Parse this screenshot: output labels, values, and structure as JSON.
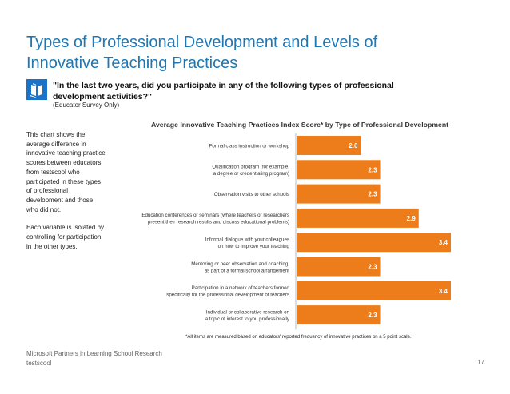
{
  "slide": {
    "title_line1": "Types of Professional Development and Levels of",
    "title_line2": "Innovative Teaching Practices",
    "question": "\"In the last two years, did you participate in any of the following types of professional development activities?\"",
    "question_source": "(Educator Survey Only)",
    "side_note_1": "This chart shows the average difference in innovative teaching practice scores between educators from testscool who participated in these types of professional development and those who did not.",
    "side_note_2": "Each variable is isolated by controlling for participation in the other types.",
    "footnote": "*All items are measured based on educators' reported frequency of innovative practices on a 5 point scale.",
    "footer_line1": "Microsoft Partners in Learning School Research",
    "footer_line2": "testscool",
    "page_number": "17",
    "icon": "book-icon"
  },
  "colors": {
    "title": "#1f78b4",
    "bar": "#ed7d1a",
    "icon": "#1a73c8"
  },
  "chart_data": {
    "type": "bar",
    "orientation": "horizontal",
    "title": "Average Innovative Teaching Practices Index Score* by Type of Professional Development",
    "categories": [
      [
        "Formal class instruction or workshop"
      ],
      [
        "Qualification program (for example,",
        "a degree or credentialing program)"
      ],
      [
        "Observation visits to other schools"
      ],
      [
        "Education conferences or seminars (where teachers or researchers",
        "present their research results and discuss educational problems)"
      ],
      [
        "Informal dialogue with your colleagues",
        "on how to improve your teaching"
      ],
      [
        "Mentoring or peer observation and coaching,",
        "as part of a formal school arrangement"
      ],
      [
        "Participation in a network of teachers formed",
        "specifically for the professional development of teachers"
      ],
      [
        "Individual or collaborative research on",
        "a topic of interest to you professionally"
      ]
    ],
    "values": [
      2.0,
      2.3,
      2.3,
      2.9,
      3.4,
      2.3,
      3.4,
      2.3
    ],
    "value_labels": [
      "2.0",
      "2.3",
      "2.3",
      "2.9",
      "3.4",
      "2.3",
      "3.4",
      "2.3"
    ],
    "xlim": [
      1.0,
      3.4
    ],
    "grid": false,
    "legend": "none"
  }
}
